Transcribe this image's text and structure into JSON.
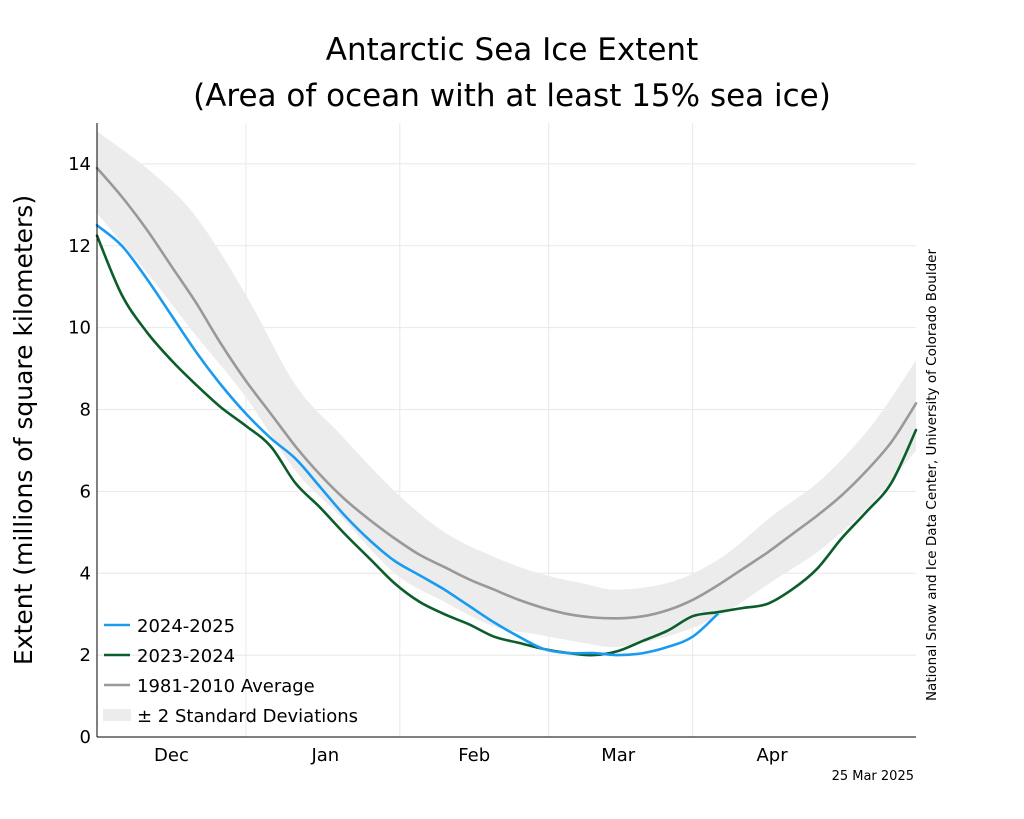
{
  "chart_data": {
    "type": "line",
    "title_line1": "Antarctic Sea Ice Extent",
    "title_line2": "(Area of ocean with at least 15% sea ice)",
    "ylabel": "Extent (millions of square kilometers)",
    "ylim": [
      0,
      15
    ],
    "yticks": [
      0,
      2,
      4,
      6,
      8,
      10,
      12,
      14
    ],
    "xlim": [
      "2024-11-16",
      "2025-04-30"
    ],
    "x_ticks": [
      "2024-12-01",
      "2025-01-01",
      "2025-02-01",
      "2025-03-01",
      "2025-04-01"
    ],
    "x_tick_labels": [
      "Dec",
      "Jan",
      "Feb",
      "Mar",
      "Apr"
    ],
    "grid": true,
    "legend_position": "bottom-left",
    "credit": "National Snow and Ice Data Center, University of Colorado Boulder",
    "date_stamp": "25 Mar 2025",
    "band": {
      "name": "± 2 Standard Deviations",
      "color": "#ececec",
      "x": [
        "2024-11-16",
        "2024-11-27",
        "2024-12-06",
        "2024-12-16",
        "2024-12-26",
        "2025-01-04",
        "2025-01-15",
        "2025-01-25",
        "2025-02-04",
        "2025-02-13",
        "2025-02-22",
        "2025-03-01",
        "2025-03-12",
        "2025-03-22",
        "2025-04-01",
        "2025-04-11",
        "2025-04-21",
        "2025-04-30"
      ],
      "upper": [
        14.8,
        13.8,
        12.7,
        10.8,
        8.6,
        7.4,
        6.0,
        5.0,
        4.4,
        4.0,
        3.75,
        3.6,
        3.8,
        4.4,
        5.4,
        6.3,
        7.6,
        9.2
      ],
      "lower": [
        12.8,
        11.2,
        9.8,
        8.3,
        6.5,
        5.4,
        4.0,
        3.3,
        2.7,
        2.5,
        2.3,
        2.2,
        2.5,
        3.0,
        3.8,
        4.6,
        5.7,
        7.0
      ]
    },
    "series": [
      {
        "name": "1981-2010 Average",
        "color": "#999999",
        "x": [
          "2024-11-16",
          "2024-11-21",
          "2024-11-26",
          "2024-12-01",
          "2024-12-06",
          "2024-12-11",
          "2024-12-16",
          "2024-12-21",
          "2024-12-26",
          "2024-12-31",
          "2025-01-05",
          "2025-01-10",
          "2025-01-15",
          "2025-01-20",
          "2025-01-25",
          "2025-01-30",
          "2025-02-04",
          "2025-02-09",
          "2025-02-14",
          "2025-02-19",
          "2025-02-24",
          "2025-03-01",
          "2025-03-06",
          "2025-03-11",
          "2025-03-16",
          "2025-03-21",
          "2025-03-26",
          "2025-03-31",
          "2025-04-05",
          "2025-04-10",
          "2025-04-15",
          "2025-04-20",
          "2025-04-25",
          "2025-04-30"
        ],
        "y": [
          13.9,
          13.2,
          12.4,
          11.5,
          10.6,
          9.6,
          8.7,
          7.9,
          7.1,
          6.4,
          5.8,
          5.3,
          4.85,
          4.45,
          4.15,
          3.85,
          3.6,
          3.35,
          3.15,
          3.0,
          2.92,
          2.9,
          2.95,
          3.1,
          3.35,
          3.7,
          4.1,
          4.5,
          4.95,
          5.4,
          5.9,
          6.5,
          7.2,
          8.15
        ]
      },
      {
        "name": "2023-2024",
        "color": "#0b5d2b",
        "x": [
          "2024-11-16",
          "2024-11-21",
          "2024-11-26",
          "2024-12-01",
          "2024-12-06",
          "2024-12-11",
          "2024-12-16",
          "2024-12-21",
          "2024-12-26",
          "2024-12-31",
          "2025-01-05",
          "2025-01-10",
          "2025-01-15",
          "2025-01-20",
          "2025-01-25",
          "2025-01-30",
          "2025-02-04",
          "2025-02-09",
          "2025-02-14",
          "2025-02-19",
          "2025-02-24",
          "2025-03-01",
          "2025-03-06",
          "2025-03-11",
          "2025-03-16",
          "2025-03-21",
          "2025-03-26",
          "2025-03-31",
          "2025-04-05",
          "2025-04-10",
          "2025-04-15",
          "2025-04-20",
          "2025-04-25",
          "2025-04-30"
        ],
        "y": [
          12.25,
          10.8,
          9.9,
          9.2,
          8.6,
          8.05,
          7.6,
          7.1,
          6.2,
          5.6,
          4.95,
          4.35,
          3.75,
          3.3,
          3.0,
          2.75,
          2.45,
          2.3,
          2.15,
          2.05,
          2.0,
          2.1,
          2.35,
          2.6,
          2.95,
          3.05,
          3.15,
          3.25,
          3.6,
          4.1,
          4.85,
          5.5,
          6.2,
          7.5
        ]
      },
      {
        "name": "2024-2025",
        "color": "#1a9bf0",
        "x": [
          "2024-11-16",
          "2024-11-21",
          "2024-11-26",
          "2024-12-01",
          "2024-12-06",
          "2024-12-11",
          "2024-12-16",
          "2024-12-21",
          "2024-12-26",
          "2024-12-31",
          "2025-01-05",
          "2025-01-10",
          "2025-01-15",
          "2025-01-20",
          "2025-01-25",
          "2025-01-30",
          "2025-02-04",
          "2025-02-09",
          "2025-02-14",
          "2025-02-19",
          "2025-02-24",
          "2025-03-01",
          "2025-03-06",
          "2025-03-11",
          "2025-03-16",
          "2025-03-21"
        ],
        "y": [
          12.5,
          12.0,
          11.2,
          10.3,
          9.4,
          8.6,
          7.9,
          7.3,
          6.8,
          6.1,
          5.4,
          4.8,
          4.3,
          3.95,
          3.6,
          3.2,
          2.8,
          2.45,
          2.15,
          2.05,
          2.05,
          2.0,
          2.05,
          2.2,
          2.45,
          3.0
        ]
      }
    ]
  }
}
